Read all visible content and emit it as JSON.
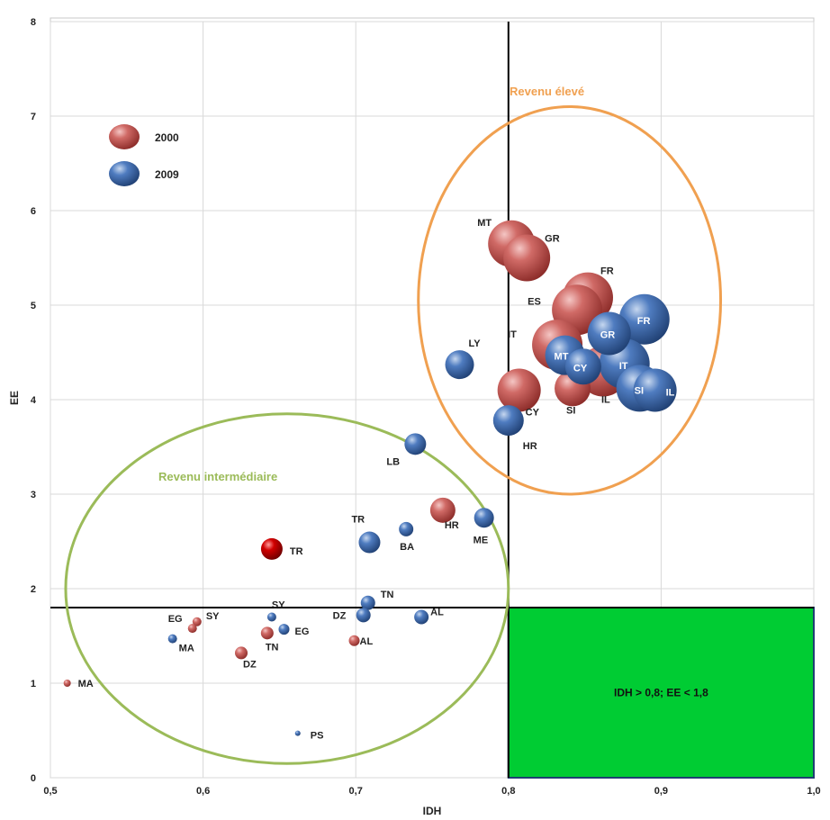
{
  "chart_data": {
    "type": "scatter",
    "title": "",
    "xlabel": "IDH",
    "ylabel": "EE",
    "xlim": [
      0.5,
      1.0
    ],
    "ylim": [
      0,
      8
    ],
    "x_ticks": [
      "0,5",
      "0,6",
      "0,7",
      "0,8",
      "0,9",
      "1,0"
    ],
    "y_ticks": [
      "0",
      "1",
      "2",
      "3",
      "4",
      "5",
      "6",
      "7",
      "8"
    ],
    "grid": true,
    "legend": {
      "placement": "top-left",
      "entries": [
        "2000",
        "2009"
      ]
    },
    "colors": {
      "2000": "#c0504d",
      "2009": "#3f6aa8",
      "tr_2000": "#cc0000",
      "high_ellipse": "#f0a050",
      "mid_ellipse": "#9bbb59",
      "box": "#00cc33"
    },
    "reference_lines": {
      "x": 0.8,
      "y": 1.8
    },
    "regions": [
      {
        "label": "Revenu élevé",
        "center": [
          0.84,
          5.05
        ],
        "radii": [
          0.099,
          2.05
        ],
        "color": "#f0a050"
      },
      {
        "label": "Revenu intermédiaire",
        "center": [
          0.655,
          2.0
        ],
        "radii": [
          0.145,
          1.85
        ],
        "color": "#9bbb59"
      }
    ],
    "highlight_box": {
      "label": "IDH > 0,8; EE < 1,8",
      "x": [
        0.8,
        1.0
      ],
      "y": [
        0,
        1.8
      ]
    },
    "series": [
      {
        "name": "2000",
        "points": [
          {
            "label": "MT",
            "x": 0.802,
            "y": 5.65,
            "size": 26,
            "label_dx": -38,
            "label_dy": -20
          },
          {
            "label": "GR",
            "x": 0.812,
            "y": 5.5,
            "size": 26,
            "label_dx": 20,
            "label_dy": -18
          },
          {
            "label": "FR",
            "x": 0.852,
            "y": 5.08,
            "size": 28,
            "label_dx": 14,
            "label_dy": -26
          },
          {
            "label": "ES",
            "x": 0.845,
            "y": 4.95,
            "size": 28,
            "label_dx": -55,
            "label_dy": -6
          },
          {
            "label": "IT",
            "x": 0.832,
            "y": 4.58,
            "size": 28,
            "label_dx": -55,
            "label_dy": -8
          },
          {
            "label": "IL",
            "x": 0.862,
            "y": 4.3,
            "size": 28,
            "label_dx": -2,
            "label_dy": 35
          },
          {
            "label": "CY",
            "x": 0.807,
            "y": 4.1,
            "size": 24,
            "label_dx": 7,
            "label_dy": 28
          },
          {
            "label": "SI",
            "x": 0.842,
            "y": 4.12,
            "size": 20,
            "label_dx": -7,
            "label_dy": 28
          },
          {
            "label": "HR",
            "x": 0.757,
            "y": 2.83,
            "size": 14,
            "label_dx": 2,
            "label_dy": 20
          },
          {
            "label": "TR",
            "x": 0.645,
            "y": 2.42,
            "size": 12,
            "label_dx": 20,
            "label_dy": 6
          },
          {
            "label": "SY",
            "x": 0.596,
            "y": 1.65,
            "size": 5,
            "label_dx": 10,
            "label_dy": -3
          },
          {
            "label": "EG",
            "x": 0.593,
            "y": 1.58,
            "size": 5,
            "label_dx": -27,
            "label_dy": -7
          },
          {
            "label": "TN",
            "x": 0.642,
            "y": 1.53,
            "size": 7,
            "label_dx": -2,
            "label_dy": 19
          },
          {
            "label": "DZ",
            "x": 0.625,
            "y": 1.32,
            "size": 7,
            "label_dx": 2,
            "label_dy": 16
          },
          {
            "label": "AL",
            "x": 0.699,
            "y": 1.45,
            "size": 6,
            "label_dx": 6,
            "label_dy": 4
          },
          {
            "label": "MA",
            "x": 0.511,
            "y": 1.0,
            "size": 4,
            "label_dx": 12,
            "label_dy": 4
          }
        ]
      },
      {
        "name": "2009",
        "points": [
          {
            "label": "FR",
            "x": 0.889,
            "y": 4.85,
            "size": 28,
            "label_dx": -8,
            "label_dy": 5
          },
          {
            "label": "GR",
            "x": 0.866,
            "y": 4.7,
            "size": 24,
            "label_dx": -10,
            "label_dy": 5
          },
          {
            "label": "MT",
            "x": 0.837,
            "y": 4.47,
            "size": 22,
            "label_dx": -12,
            "label_dy": 5
          },
          {
            "label": "CY",
            "x": 0.849,
            "y": 4.35,
            "size": 20,
            "label_dx": -11,
            "label_dy": 5
          },
          {
            "label": "IT",
            "x": 0.876,
            "y": 4.38,
            "size": 28,
            "label_dx": -6,
            "label_dy": 6
          },
          {
            "label": "SI",
            "x": 0.886,
            "y": 4.12,
            "size": 26,
            "label_dx": -6,
            "label_dy": 6
          },
          {
            "label": "IL",
            "x": 0.896,
            "y": 4.1,
            "size": 24,
            "label_dx": 12,
            "label_dy": 6
          },
          {
            "label": "LY",
            "x": 0.768,
            "y": 4.37,
            "size": 16,
            "label_dx": 10,
            "label_dy": -20
          },
          {
            "label": "HR",
            "x": 0.8,
            "y": 3.78,
            "size": 17,
            "label_dx": 16,
            "label_dy": 32
          },
          {
            "label": "LB",
            "x": 0.739,
            "y": 3.53,
            "size": 12,
            "label_dx": -32,
            "label_dy": 23
          },
          {
            "label": "ME",
            "x": 0.784,
            "y": 2.75,
            "size": 11,
            "label_dx": -12,
            "label_dy": 28
          },
          {
            "label": "BA",
            "x": 0.733,
            "y": 2.63,
            "size": 8,
            "label_dx": -7,
            "label_dy": 23
          },
          {
            "label": "TR",
            "x": 0.709,
            "y": 2.49,
            "size": 12,
            "label_dx": -20,
            "label_dy": -22
          },
          {
            "label": "TN",
            "x": 0.708,
            "y": 1.85,
            "size": 8,
            "label_dx": 14,
            "label_dy": -6
          },
          {
            "label": "DZ",
            "x": 0.705,
            "y": 1.72,
            "size": 8,
            "label_dx": -34,
            "label_dy": 4
          },
          {
            "label": "AL",
            "x": 0.743,
            "y": 1.7,
            "size": 8,
            "label_dx": 10,
            "label_dy": -2
          },
          {
            "label": "SY",
            "x": 0.645,
            "y": 1.7,
            "size": 5,
            "label_dx": 0,
            "label_dy": -10
          },
          {
            "label": "EG",
            "x": 0.653,
            "y": 1.57,
            "size": 6,
            "label_dx": 12,
            "label_dy": 6
          },
          {
            "label": "MA",
            "x": 0.58,
            "y": 1.47,
            "size": 5,
            "label_dx": 7,
            "label_dy": 14
          },
          {
            "label": "PS",
            "x": 0.662,
            "y": 0.47,
            "size": 3,
            "label_dx": 14,
            "label_dy": 6
          }
        ]
      }
    ]
  }
}
